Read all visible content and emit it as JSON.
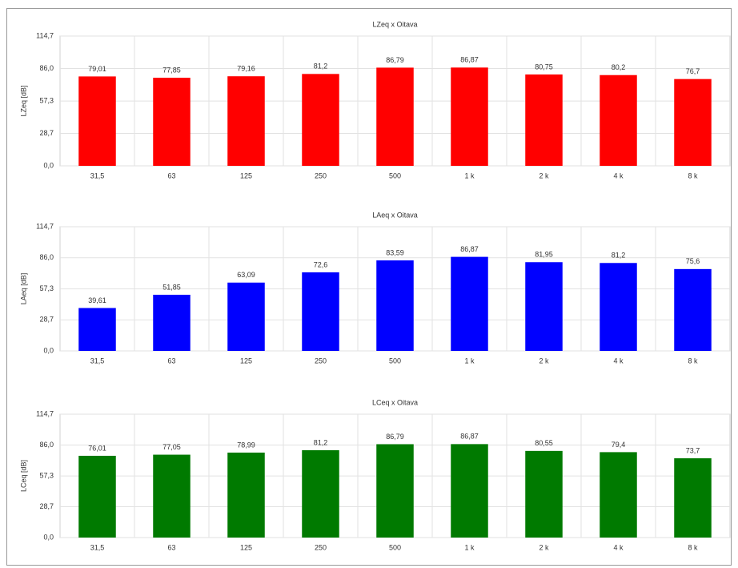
{
  "chart_data": [
    {
      "type": "bar",
      "title": "LZeq x Oitava",
      "y_label": "LZeq [dB]",
      "color": "#ff0000",
      "grid": true,
      "categories": [
        "31,5",
        "63",
        "125",
        "250",
        "500",
        "1 k",
        "2 k",
        "4 k",
        "8 k"
      ],
      "values": [
        79.01,
        77.85,
        79.16,
        81.2,
        86.79,
        86.87,
        80.75,
        80.2,
        76.7
      ],
      "value_labels": [
        "79,01",
        "77,85",
        "79,16",
        "81,2",
        "86,79",
        "86,87",
        "80,75",
        "80,2",
        "76,7"
      ],
      "ylim": [
        0,
        114.7
      ],
      "yticks": [
        {
          "value": 0,
          "label": "0,0"
        },
        {
          "value": 28.7,
          "label": "28,7"
        },
        {
          "value": 57.3,
          "label": "57,3"
        },
        {
          "value": 86.0,
          "label": "86,0"
        },
        {
          "value": 114.7,
          "label": "114,7"
        }
      ]
    },
    {
      "type": "bar",
      "title": "LAeq x Oitava",
      "y_label": "LAeq [dB]",
      "color": "#0000ff",
      "grid": true,
      "categories": [
        "31,5",
        "63",
        "125",
        "250",
        "500",
        "1 k",
        "2 k",
        "4 k",
        "8 k"
      ],
      "values": [
        39.61,
        51.85,
        63.09,
        72.6,
        83.59,
        86.87,
        81.95,
        81.2,
        75.6
      ],
      "value_labels": [
        "39,61",
        "51,85",
        "63,09",
        "72,6",
        "83,59",
        "86,87",
        "81,95",
        "81,2",
        "75,6"
      ],
      "ylim": [
        0,
        114.7
      ],
      "yticks": [
        {
          "value": 0,
          "label": "0,0"
        },
        {
          "value": 28.7,
          "label": "28,7"
        },
        {
          "value": 57.3,
          "label": "57,3"
        },
        {
          "value": 86.0,
          "label": "86,0"
        },
        {
          "value": 114.7,
          "label": "114,7"
        }
      ]
    },
    {
      "type": "bar",
      "title": "LCeq x Oitava",
      "y_label": "LCeq [dB]",
      "color": "#007a00",
      "grid": true,
      "categories": [
        "31,5",
        "63",
        "125",
        "250",
        "500",
        "1 k",
        "2 k",
        "4 k",
        "8 k"
      ],
      "values": [
        76.01,
        77.05,
        78.99,
        81.2,
        86.79,
        86.87,
        80.55,
        79.4,
        73.7
      ],
      "value_labels": [
        "76,01",
        "77,05",
        "78,99",
        "81,2",
        "86,79",
        "86,87",
        "80,55",
        "79,4",
        "73,7"
      ],
      "ylim": [
        0,
        114.7
      ],
      "yticks": [
        {
          "value": 0,
          "label": "0,0"
        },
        {
          "value": 28.7,
          "label": "28,7"
        },
        {
          "value": 57.3,
          "label": "57,3"
        },
        {
          "value": 86.0,
          "label": "86,0"
        },
        {
          "value": 114.7,
          "label": "114,7"
        }
      ]
    }
  ]
}
